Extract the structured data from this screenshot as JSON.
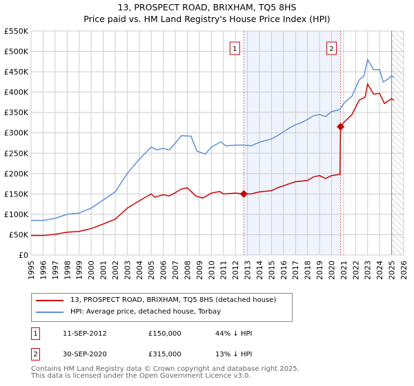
{
  "chart_data": {
    "type": "line",
    "title": "13, PROSPECT ROAD, BRIXHAM, TQ5 8HS",
    "subtitle": "Price paid vs. HM Land Registry's House Price Index (HPI)",
    "xlim": [
      1995,
      2026
    ],
    "ylim": [
      0,
      550000
    ],
    "x_ticks": [
      "1995",
      "1996",
      "1997",
      "1998",
      "1999",
      "2000",
      "2001",
      "2002",
      "2003",
      "2004",
      "2005",
      "2006",
      "2007",
      "2008",
      "2009",
      "2010",
      "2011",
      "2012",
      "2013",
      "2014",
      "2015",
      "2016",
      "2017",
      "2018",
      "2019",
      "2020",
      "2021",
      "2022",
      "2023",
      "2024",
      "2025",
      "2026"
    ],
    "y_ticks": [
      {
        "v": 0,
        "label": "£0"
      },
      {
        "v": 50000,
        "label": "£50K"
      },
      {
        "v": 100000,
        "label": "£100K"
      },
      {
        "v": 150000,
        "label": "£150K"
      },
      {
        "v": 200000,
        "label": "£200K"
      },
      {
        "v": 250000,
        "label": "£250K"
      },
      {
        "v": 300000,
        "label": "£300K"
      },
      {
        "v": 350000,
        "label": "£350K"
      },
      {
        "v": 400000,
        "label": "£400K"
      },
      {
        "v": 450000,
        "label": "£450K"
      },
      {
        "v": 500000,
        "label": "£500K"
      },
      {
        "v": 550000,
        "label": "£550K"
      }
    ],
    "grid": true,
    "shaded_range": [
      2012.7,
      2020.75
    ],
    "forecast_hatch_from": 2025.0,
    "series": [
      {
        "name": "13, PROSPECT ROAD, BRIXHAM, TQ5 8HS (detached house)",
        "color": "#cc0000",
        "x": [
          1995,
          1996,
          1997,
          1998,
          1999,
          2000,
          2001,
          2002,
          2003,
          2004,
          2005,
          2005.3,
          2006,
          2006.5,
          2007,
          2007.5,
          2008,
          2008.7,
          2009.3,
          2010,
          2010.7,
          2011,
          2012,
          2012.7,
          2013.3,
          2014,
          2015,
          2015.5,
          2016.5,
          2017,
          2018,
          2018.5,
          2019,
          2019.5,
          2020,
          2020.7,
          2020.75,
          2021,
          2021.7,
          2022.3,
          2022.8,
          2023,
          2023.5,
          2024,
          2024.4,
          2024.8,
          2025,
          2025.2
        ],
        "y": [
          48000,
          48000,
          51000,
          56000,
          58000,
          65000,
          76000,
          88000,
          115000,
          133000,
          150000,
          142000,
          148000,
          145000,
          153000,
          162000,
          165000,
          145000,
          140000,
          152000,
          156000,
          150000,
          152000,
          150000,
          150000,
          155000,
          158000,
          165000,
          175000,
          180000,
          183000,
          192000,
          195000,
          188000,
          195000,
          198000,
          315000,
          325000,
          345000,
          380000,
          388000,
          420000,
          395000,
          397000,
          372000,
          380000,
          384000,
          380000
        ]
      },
      {
        "name": "HPI: Average price, detached house, Torbay",
        "color": "#5b8fd4",
        "x": [
          1995,
          1996,
          1997,
          1998,
          1999,
          2000,
          2001,
          2002,
          2003,
          2004,
          2005,
          2005.5,
          2006,
          2006.5,
          2007,
          2007.5,
          2008.3,
          2008.8,
          2009.5,
          2010,
          2010.8,
          2011.2,
          2012,
          2012.7,
          2013.3,
          2014,
          2015,
          2015.5,
          2016.5,
          2017,
          2017.5,
          2018,
          2018.5,
          2019,
          2019.5,
          2020,
          2020.7,
          2021,
          2021.7,
          2022.3,
          2022.7,
          2023,
          2023.5,
          2024,
          2024.3,
          2024.7,
          2025,
          2025.2
        ],
        "y": [
          85000,
          85000,
          90000,
          100000,
          103000,
          115000,
          135000,
          155000,
          200000,
          235000,
          265000,
          258000,
          262000,
          258000,
          275000,
          293000,
          292000,
          255000,
          248000,
          265000,
          278000,
          268000,
          270000,
          270000,
          268000,
          277000,
          285000,
          293000,
          312000,
          320000,
          325000,
          333000,
          342000,
          345000,
          340000,
          352000,
          357000,
          372000,
          390000,
          430000,
          440000,
          480000,
          455000,
          455000,
          425000,
          432000,
          440000,
          436000
        ]
      }
    ],
    "annotations": [
      {
        "label": "1",
        "x": 2012.7,
        "y": 150000
      },
      {
        "label": "2",
        "x": 2020.75,
        "y": 315000
      }
    ]
  },
  "legend": {
    "items": [
      "13, PROSPECT ROAD, BRIXHAM, TQ5 8HS (detached house)",
      "HPI: Average price, detached house, Torbay"
    ]
  },
  "transactions": [
    {
      "num": "1",
      "date": "11-SEP-2012",
      "price": "£150,000",
      "hpi": "44% ↓ HPI"
    },
    {
      "num": "2",
      "date": "30-SEP-2020",
      "price": "£315,000",
      "hpi": "13% ↓ HPI"
    }
  ],
  "footer": {
    "line1": "Contains HM Land Registry data © Crown copyright and database right 2025.",
    "line2": "This data is licensed under the Open Government Licence v3.0."
  }
}
